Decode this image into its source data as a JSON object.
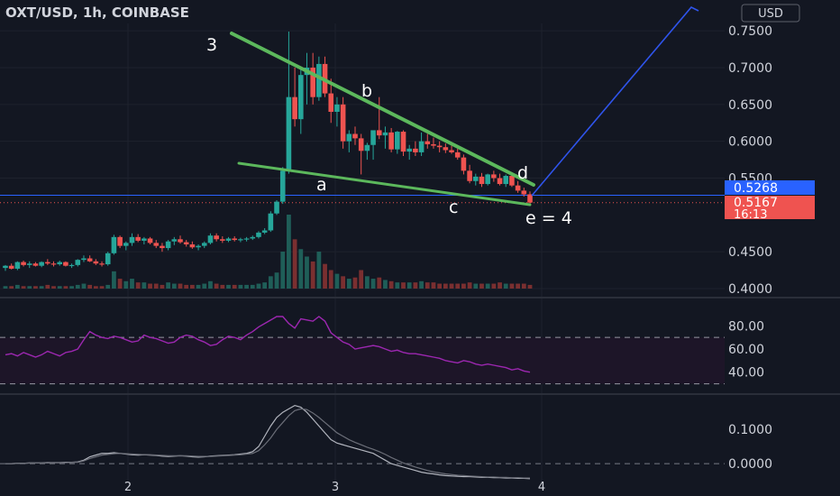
{
  "header": {
    "title": "OXT/USD, 1h, COINBASE",
    "currency_button": "USD"
  },
  "colors": {
    "background": "#131722",
    "up": "#26a69a",
    "down": "#ef5350",
    "wedge_lines": "#5cb85c",
    "projection_line": "#2f54eb",
    "rsi_line": "#9c27b0",
    "current_price_tag": "#2962ff",
    "last_price_tag": "#ef5350"
  },
  "chart_data": [
    {
      "type": "candlestick",
      "pane": "price",
      "symbol": "OXT/USD",
      "interval": "1h",
      "exchange": "COINBASE",
      "ylim": [
        0.4,
        0.76
      ],
      "y_ticks": [
        "0.7500",
        "0.7000",
        "0.6500",
        "0.6000",
        "0.5500",
        "0.4500",
        "0.4000"
      ],
      "x_ticks": [
        "2",
        "3",
        "4"
      ],
      "price_tags": [
        {
          "label": "0.5268",
          "value": 0.5268,
          "style": "blue"
        },
        {
          "label": "0.5167",
          "value": 0.5167,
          "style": "red"
        }
      ],
      "countdown": "16:13",
      "annotations": [
        "3",
        "a",
        "b",
        "c",
        "d",
        "e = 4"
      ],
      "candles": [
        [
          0.428,
          0.432,
          0.424,
          0.431
        ],
        [
          0.431,
          0.434,
          0.426,
          0.427
        ],
        [
          0.427,
          0.437,
          0.425,
          0.436
        ],
        [
          0.436,
          0.438,
          0.43,
          0.432
        ],
        [
          0.432,
          0.437,
          0.428,
          0.434
        ],
        [
          0.434,
          0.436,
          0.43,
          0.431
        ],
        [
          0.431,
          0.437,
          0.429,
          0.436
        ],
        [
          0.436,
          0.44,
          0.432,
          0.434
        ],
        [
          0.434,
          0.437,
          0.43,
          0.433
        ],
        [
          0.433,
          0.438,
          0.431,
          0.436
        ],
        [
          0.436,
          0.437,
          0.43,
          0.431
        ],
        [
          0.431,
          0.434,
          0.428,
          0.432
        ],
        [
          0.432,
          0.44,
          0.43,
          0.439
        ],
        [
          0.439,
          0.445,
          0.436,
          0.441
        ],
        [
          0.441,
          0.445,
          0.436,
          0.437
        ],
        [
          0.437,
          0.44,
          0.432,
          0.434
        ],
        [
          0.434,
          0.437,
          0.43,
          0.433
        ],
        [
          0.433,
          0.45,
          0.431,
          0.448
        ],
        [
          0.448,
          0.473,
          0.446,
          0.47
        ],
        [
          0.47,
          0.472,
          0.455,
          0.458
        ],
        [
          0.458,
          0.464,
          0.452,
          0.462
        ],
        [
          0.462,
          0.475,
          0.458,
          0.47
        ],
        [
          0.47,
          0.474,
          0.463,
          0.465
        ],
        [
          0.465,
          0.47,
          0.46,
          0.468
        ],
        [
          0.468,
          0.47,
          0.46,
          0.462
        ],
        [
          0.462,
          0.466,
          0.455,
          0.458
        ],
        [
          0.458,
          0.462,
          0.45,
          0.455
        ],
        [
          0.455,
          0.466,
          0.452,
          0.464
        ],
        [
          0.464,
          0.47,
          0.459,
          0.467
        ],
        [
          0.467,
          0.472,
          0.461,
          0.463
        ],
        [
          0.463,
          0.466,
          0.457,
          0.46
        ],
        [
          0.46,
          0.464,
          0.454,
          0.456
        ],
        [
          0.456,
          0.46,
          0.452,
          0.458
        ],
        [
          0.458,
          0.464,
          0.455,
          0.462
        ],
        [
          0.462,
          0.475,
          0.46,
          0.472
        ],
        [
          0.472,
          0.475,
          0.464,
          0.467
        ],
        [
          0.467,
          0.471,
          0.462,
          0.465
        ],
        [
          0.465,
          0.47,
          0.463,
          0.468
        ],
        [
          0.468,
          0.471,
          0.464,
          0.466
        ],
        [
          0.466,
          0.469,
          0.463,
          0.467
        ],
        [
          0.467,
          0.47,
          0.464,
          0.468
        ],
        [
          0.468,
          0.472,
          0.466,
          0.47
        ],
        [
          0.47,
          0.478,
          0.468,
          0.476
        ],
        [
          0.476,
          0.482,
          0.474,
          0.479
        ],
        [
          0.479,
          0.505,
          0.477,
          0.502
        ],
        [
          0.502,
          0.52,
          0.5,
          0.518
        ],
        [
          0.518,
          0.565,
          0.515,
          0.56
        ],
        [
          0.56,
          0.749,
          0.556,
          0.66
        ],
        [
          0.66,
          0.7,
          0.62,
          0.63
        ],
        [
          0.63,
          0.7,
          0.61,
          0.69
        ],
        [
          0.69,
          0.72,
          0.65,
          0.7
        ],
        [
          0.7,
          0.72,
          0.65,
          0.66
        ],
        [
          0.66,
          0.715,
          0.655,
          0.705
        ],
        [
          0.705,
          0.715,
          0.66,
          0.665
        ],
        [
          0.665,
          0.685,
          0.625,
          0.64
        ],
        [
          0.64,
          0.66,
          0.62,
          0.65
        ],
        [
          0.65,
          0.66,
          0.59,
          0.6
        ],
        [
          0.6,
          0.615,
          0.585,
          0.61
        ],
        [
          0.61,
          0.62,
          0.595,
          0.604
        ],
        [
          0.604,
          0.61,
          0.555,
          0.587
        ],
        [
          0.587,
          0.598,
          0.575,
          0.595
        ],
        [
          0.595,
          0.613,
          0.575,
          0.615
        ],
        [
          0.615,
          0.66,
          0.603,
          0.608
        ],
        [
          0.608,
          0.62,
          0.59,
          0.612
        ],
        [
          0.612,
          0.618,
          0.585,
          0.589
        ],
        [
          0.589,
          0.614,
          0.583,
          0.613
        ],
        [
          0.613,
          0.615,
          0.58,
          0.586
        ],
        [
          0.586,
          0.595,
          0.575,
          0.59
        ],
        [
          0.59,
          0.6,
          0.58,
          0.585
        ],
        [
          0.585,
          0.612,
          0.58,
          0.6
        ],
        [
          0.6,
          0.61,
          0.59,
          0.596
        ],
        [
          0.596,
          0.605,
          0.59,
          0.594
        ],
        [
          0.594,
          0.6,
          0.585,
          0.592
        ],
        [
          0.592,
          0.597,
          0.584,
          0.588
        ],
        [
          0.588,
          0.594,
          0.583,
          0.585
        ],
        [
          0.585,
          0.59,
          0.575,
          0.578
        ],
        [
          0.578,
          0.582,
          0.555,
          0.56
        ],
        [
          0.56,
          0.568,
          0.543,
          0.546
        ],
        [
          0.546,
          0.556,
          0.54,
          0.552
        ],
        [
          0.552,
          0.557,
          0.538,
          0.542
        ],
        [
          0.542,
          0.556,
          0.54,
          0.555
        ],
        [
          0.555,
          0.56,
          0.545,
          0.55
        ],
        [
          0.55,
          0.556,
          0.54,
          0.542
        ],
        [
          0.542,
          0.555,
          0.538,
          0.553
        ],
        [
          0.553,
          0.557,
          0.538,
          0.54
        ],
        [
          0.54,
          0.546,
          0.53,
          0.533
        ],
        [
          0.533,
          0.537,
          0.525,
          0.528
        ],
        [
          0.528,
          0.532,
          0.516,
          0.5167
        ]
      ],
      "volume": [
        2,
        2,
        3,
        2,
        2,
        2,
        2,
        3,
        2,
        2,
        2,
        2,
        3,
        4,
        3,
        2,
        2,
        3,
        14,
        8,
        6,
        8,
        5,
        5,
        4,
        4,
        3,
        5,
        4,
        4,
        3,
        3,
        3,
        4,
        6,
        4,
        3,
        3,
        3,
        3,
        3,
        3,
        4,
        5,
        10,
        13,
        30,
        60,
        40,
        32,
        26,
        22,
        30,
        20,
        15,
        12,
        10,
        8,
        9,
        15,
        10,
        8,
        9,
        7,
        6,
        5,
        5,
        5,
        5,
        6,
        5,
        5,
        4,
        4,
        4,
        4,
        4,
        5,
        4,
        4,
        4,
        4,
        5,
        4,
        4,
        4,
        4,
        3
      ]
    },
    {
      "type": "line",
      "pane": "rsi",
      "ylim": [
        25,
        95
      ],
      "y_ticks": [
        "80.00",
        "60.00",
        "40.00"
      ],
      "bands": [
        70,
        30
      ],
      "values": [
        55,
        56,
        54,
        57,
        55,
        53,
        55,
        58,
        56,
        54,
        57,
        58,
        60,
        68,
        75,
        72,
        70,
        69,
        71,
        70,
        68,
        66,
        67,
        72,
        70,
        69,
        67,
        65,
        66,
        70,
        72,
        71,
        68,
        66,
        63,
        64,
        68,
        71,
        70,
        68,
        72,
        75,
        79,
        82,
        85,
        88,
        88,
        82,
        78,
        86,
        85,
        84,
        88,
        84,
        74,
        70,
        66,
        64,
        60,
        61,
        62,
        63,
        62,
        60,
        58,
        59,
        57,
        56,
        56,
        55,
        54,
        53,
        52,
        50,
        49,
        48,
        50,
        49,
        47,
        46,
        47,
        46,
        45,
        44,
        42,
        43,
        41,
        40
      ]
    },
    {
      "type": "line",
      "pane": "oscillator",
      "ylim": [
        -0.055,
        0.19
      ],
      "y_ticks": [
        "0.1000",
        "0.0000"
      ],
      "zero_line": 0,
      "series": [
        {
          "values": [
            0.0,
            0.0,
            0.001,
            0.001,
            0.002,
            0.002,
            0.002,
            0.003,
            0.003,
            0.003,
            0.004,
            0.004,
            0.005,
            0.01,
            0.02,
            0.025,
            0.03,
            0.03,
            0.032,
            0.03,
            0.028,
            0.026,
            0.025,
            0.026,
            0.025,
            0.024,
            0.022,
            0.021,
            0.022,
            0.023,
            0.022,
            0.02,
            0.019,
            0.02,
            0.022,
            0.023,
            0.024,
            0.025,
            0.026,
            0.028,
            0.03,
            0.035,
            0.05,
            0.08,
            0.11,
            0.135,
            0.15,
            0.16,
            0.17,
            0.165,
            0.15,
            0.13,
            0.11,
            0.09,
            0.07,
            0.06,
            0.055,
            0.05,
            0.045,
            0.04,
            0.035,
            0.03,
            0.02,
            0.01,
            0.0,
            -0.005,
            -0.01,
            -0.015,
            -0.02,
            -0.025,
            -0.028,
            -0.03,
            -0.033,
            -0.035,
            -0.036,
            -0.037,
            -0.038,
            -0.038,
            -0.039,
            -0.04,
            -0.04,
            -0.041,
            -0.041,
            -0.042,
            -0.042,
            -0.043,
            -0.043,
            -0.044
          ]
        },
        {
          "values": [
            0.0,
            0.0,
            0.001,
            0.001,
            0.002,
            0.002,
            0.002,
            0.002,
            0.003,
            0.003,
            0.003,
            0.004,
            0.004,
            0.008,
            0.015,
            0.02,
            0.025,
            0.027,
            0.029,
            0.03,
            0.029,
            0.028,
            0.027,
            0.026,
            0.026,
            0.025,
            0.024,
            0.023,
            0.023,
            0.023,
            0.023,
            0.022,
            0.021,
            0.021,
            0.021,
            0.022,
            0.023,
            0.024,
            0.025,
            0.026,
            0.028,
            0.03,
            0.038,
            0.055,
            0.075,
            0.1,
            0.12,
            0.14,
            0.155,
            0.16,
            0.158,
            0.148,
            0.135,
            0.12,
            0.105,
            0.09,
            0.08,
            0.07,
            0.062,
            0.055,
            0.048,
            0.042,
            0.035,
            0.027,
            0.018,
            0.01,
            0.002,
            -0.004,
            -0.01,
            -0.015,
            -0.02,
            -0.024,
            -0.027,
            -0.03,
            -0.032,
            -0.034,
            -0.035,
            -0.036,
            -0.037,
            -0.038,
            -0.039,
            -0.039,
            -0.04,
            -0.04,
            -0.041,
            -0.041,
            -0.042,
            -0.042
          ]
        }
      ]
    }
  ]
}
